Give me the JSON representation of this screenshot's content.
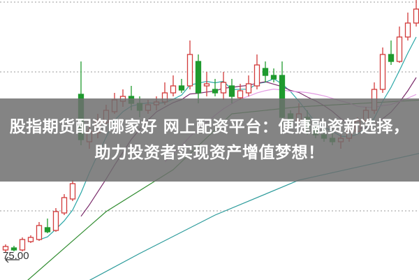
{
  "headline": "股指期货配资哪家好 网上配资平台：便捷融资新选择，助力投资者实现资产增值梦想！",
  "chart_data": {
    "type": "candlestick",
    "price_label": "75.00",
    "up_color": "#d23a3a",
    "down_color": "#1f9a2e",
    "grid": "dotted horizontal",
    "ohlc": [
      [
        76.0,
        76.8,
        75.6,
        76.5
      ],
      [
        76.3,
        76.6,
        75.8,
        76.0
      ],
      [
        76.0,
        77.8,
        75.8,
        77.5
      ],
      [
        77.2,
        78.1,
        77.0,
        77.8
      ],
      [
        77.5,
        80.0,
        77.3,
        79.5
      ],
      [
        79.2,
        80.5,
        78.4,
        78.6
      ],
      [
        78.8,
        82.0,
        78.6,
        81.5
      ],
      [
        81.3,
        84.0,
        81.0,
        83.5
      ],
      [
        83.3,
        86.0,
        83.0,
        85.5
      ],
      [
        98.3,
        103.0,
        91.0,
        91.8
      ],
      [
        91.5,
        94.0,
        90.5,
        93.0
      ],
      [
        92.8,
        95.5,
        92.0,
        94.5
      ],
      [
        94.3,
        96.8,
        93.8,
        96.0
      ],
      [
        95.8,
        98.5,
        95.5,
        97.5
      ],
      [
        97.3,
        99.0,
        96.5,
        98.0
      ],
      [
        98.0,
        99.5,
        96.0,
        97.0
      ],
      [
        97.0,
        98.0,
        95.0,
        96.0
      ],
      [
        96.0,
        97.5,
        95.5,
        96.8
      ],
      [
        96.8,
        98.0,
        96.0,
        97.2
      ],
      [
        97.2,
        100.0,
        96.8,
        98.5
      ],
      [
        98.5,
        101.0,
        98.0,
        99.5
      ],
      [
        99.5,
        100.5,
        98.5,
        98.9
      ],
      [
        99.5,
        106.0,
        99.0,
        104.0
      ],
      [
        103.0,
        104.0,
        97.0,
        98.5
      ],
      [
        99.5,
        101.5,
        98.0,
        99.8
      ],
      [
        99.0,
        100.5,
        98.0,
        98.5
      ],
      [
        98.5,
        101.5,
        97.5,
        100.0
      ],
      [
        99.5,
        100.5,
        97.0,
        98.0
      ],
      [
        97.8,
        99.8,
        97.5,
        98.8
      ],
      [
        98.5,
        101.0,
        98.0,
        99.8
      ],
      [
        99.5,
        104.0,
        99.0,
        102.5
      ],
      [
        102.0,
        103.0,
        100.0,
        101.0
      ],
      [
        101.0,
        102.0,
        100.0,
        100.5
      ],
      [
        101.0,
        103.0,
        94.0,
        95.0
      ],
      [
        95.5,
        96.0,
        93.5,
        94.5
      ],
      [
        94.5,
        97.0,
        94.0,
        95.5
      ],
      [
        95.0,
        96.0,
        92.5,
        93.5
      ],
      [
        93.5,
        94.0,
        92.0,
        92.5
      ],
      [
        92.5,
        93.5,
        91.5,
        92.0
      ],
      [
        92.0,
        93.0,
        91.0,
        91.5
      ],
      [
        91.5,
        92.5,
        90.5,
        92.0
      ],
      [
        92.0,
        93.5,
        91.5,
        93.0
      ],
      [
        93.0,
        95.0,
        92.8,
        94.5
      ],
      [
        94.5,
        96.5,
        94.0,
        96.0
      ],
      [
        96.0,
        100.0,
        95.5,
        99.0
      ],
      [
        99.0,
        105.0,
        98.5,
        104.0
      ],
      [
        104.0,
        106.0,
        102.5,
        103.0
      ],
      [
        103.0,
        108.0,
        102.8,
        106.5
      ],
      [
        106.5,
        110.0,
        106.0,
        108.5
      ],
      [
        108.5,
        112.0,
        108.0,
        110.5
      ]
    ],
    "moving_averages": [
      {
        "period": 5,
        "color": "#2aa7a7"
      },
      {
        "period": 10,
        "color": "#7a2a6a"
      },
      {
        "period": 20,
        "color": "#e39be3"
      }
    ],
    "long_lines": [
      {
        "color": "#2e8b2e",
        "points": [
          [
            2,
            71.0
          ],
          [
            12,
            81.5
          ],
          [
            20,
            87.5
          ],
          [
            27,
            95.5
          ],
          [
            35,
            96.5
          ],
          [
            50,
            97.5
          ]
        ]
      },
      {
        "color": "#2a9a9a",
        "points": [
          [
            9,
            71.0
          ],
          [
            16,
            75.5
          ],
          [
            25,
            81.0
          ],
          [
            35,
            86.0
          ],
          [
            50,
            90.0
          ]
        ]
      }
    ]
  }
}
